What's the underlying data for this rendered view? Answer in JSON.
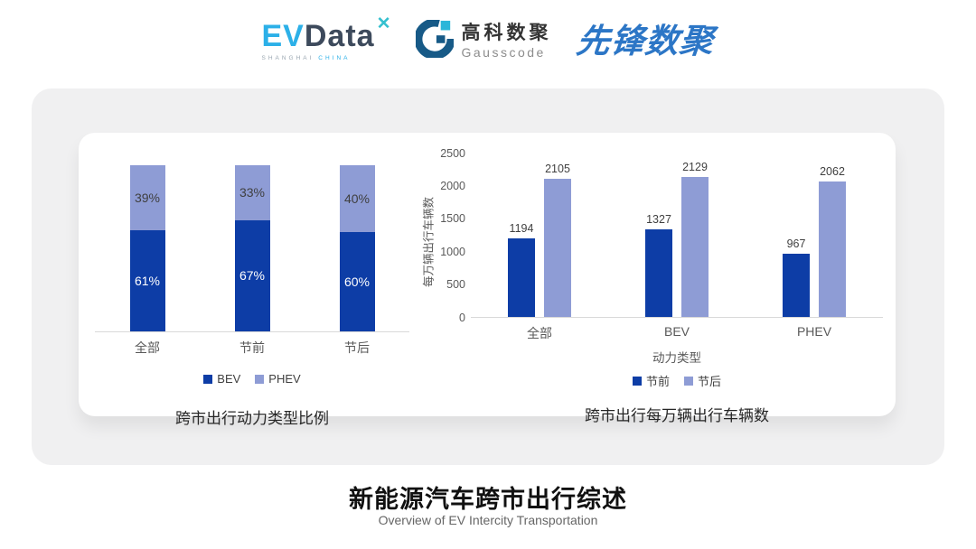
{
  "header": {
    "evdata_logo": {
      "ev": "EV",
      "data": "Data",
      "spark": "✕",
      "sub_left": "SHANGHAI",
      "sub_right": "CHINA"
    },
    "gausscode_logo": {
      "cn": "高科数聚",
      "en": "Gausscode"
    },
    "xianfeng_logo": {
      "text": "先锋数聚"
    }
  },
  "footer": {
    "title": "新能源汽车跨市出行综述",
    "subtitle": "Overview of EV Intercity Transportation"
  },
  "colors": {
    "series_dark_blue": "#0d3da6",
    "series_light_blue": "#8e9cd5",
    "axis_line": "#d9d9d9",
    "axis_text": "#595959",
    "value_text": "#404040"
  },
  "chart_data": [
    {
      "type": "bar",
      "variant": "stacked-percent",
      "title": "跨市出行动力类型比例",
      "categories": [
        "全部",
        "节前",
        "节后"
      ],
      "series": [
        {
          "name": "BEV",
          "color": "#0d3da6",
          "values": [
            61,
            67,
            60
          ],
          "labels": [
            "61%",
            "67%",
            "60%"
          ],
          "label_color": "#ffffff"
        },
        {
          "name": "PHEV",
          "color": "#8e9cd5",
          "values": [
            39,
            33,
            40
          ],
          "labels": [
            "39%",
            "33%",
            "40%"
          ],
          "label_color": "#3f3f3f"
        }
      ],
      "ylim": [
        0,
        100
      ],
      "grid": false,
      "legend_position": "bottom"
    },
    {
      "type": "bar",
      "variant": "grouped",
      "title": "跨市出行每万辆出行车辆数",
      "categories": [
        "全部",
        "BEV",
        "PHEV"
      ],
      "xlabel": "动力类型",
      "ylabel": "每万辆出行车辆数",
      "series": [
        {
          "name": "节前",
          "color": "#0d3da6",
          "values": [
            1194,
            1327,
            967
          ]
        },
        {
          "name": "节后",
          "color": "#8e9cd5",
          "values": [
            2105,
            2129,
            2062
          ]
        }
      ],
      "ylim": [
        0,
        2500
      ],
      "yticks": [
        0,
        500,
        1000,
        1500,
        2000,
        2500
      ],
      "grid": false,
      "legend_position": "bottom"
    }
  ]
}
